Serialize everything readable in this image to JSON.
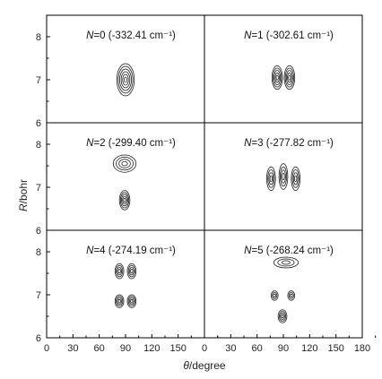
{
  "chart_data": {
    "type": "contour",
    "xlabel_symbol": "θ",
    "xlabel_unit": "/degree",
    "ylabel_symbol": "R",
    "ylabel_unit": "/bohr",
    "xlim": [
      0,
      180
    ],
    "ylim": [
      6,
      8.5
    ],
    "x_ticks": [
      "0",
      "30",
      "60",
      "90",
      "120",
      "150",
      "0",
      "30",
      "60",
      "90",
      "120",
      "150",
      "180"
    ],
    "y_ticks": [
      "6",
      "7",
      "8"
    ],
    "grid": false,
    "panels": [
      {
        "state": "N=0",
        "energy": "(-332.41 cm⁻¹)",
        "blobs": [
          {
            "x": 90,
            "y": 7.0,
            "wx": 10,
            "wy": 0.75,
            "rings": 6
          }
        ]
      },
      {
        "state": "N=1",
        "energy": "(-302.61 cm⁻¹)",
        "blobs": [
          {
            "x": 83,
            "y": 7.05,
            "wx": 6,
            "wy": 0.55,
            "rings": 5
          },
          {
            "x": 97,
            "y": 7.05,
            "wx": 6,
            "wy": 0.55,
            "rings": 5
          }
        ]
      },
      {
        "state": "N=2",
        "energy": "(-299.40 cm⁻¹)",
        "blobs": [
          {
            "x": 89,
            "y": 7.55,
            "wx": 13,
            "wy": 0.4,
            "rings": 4
          },
          {
            "x": 89,
            "y": 6.7,
            "wx": 6,
            "wy": 0.45,
            "rings": 5
          }
        ]
      },
      {
        "state": "N=3",
        "energy": "(-277.82 cm⁻¹)",
        "blobs": [
          {
            "x": 76,
            "y": 7.2,
            "wx": 5,
            "wy": 0.55,
            "rings": 4
          },
          {
            "x": 90,
            "y": 7.25,
            "wx": 5,
            "wy": 0.6,
            "rings": 4
          },
          {
            "x": 104,
            "y": 7.2,
            "wx": 5,
            "wy": 0.55,
            "rings": 4
          }
        ]
      },
      {
        "state": "N=4",
        "energy": "(-274.19 cm⁻¹)",
        "blobs": [
          {
            "x": 83,
            "y": 7.55,
            "wx": 5,
            "wy": 0.35,
            "rings": 4
          },
          {
            "x": 97,
            "y": 7.55,
            "wx": 5,
            "wy": 0.35,
            "rings": 4
          },
          {
            "x": 83,
            "y": 6.85,
            "wx": 5,
            "wy": 0.3,
            "rings": 4
          },
          {
            "x": 97,
            "y": 6.85,
            "wx": 5,
            "wy": 0.3,
            "rings": 4
          }
        ]
      },
      {
        "state": "N=5",
        "energy": "(-268.24 cm⁻¹)",
        "blobs": [
          {
            "x": 93,
            "y": 7.75,
            "wx": 14,
            "wy": 0.25,
            "rings": 3
          },
          {
            "x": 80,
            "y": 6.98,
            "wx": 4,
            "wy": 0.22,
            "rings": 3
          },
          {
            "x": 99,
            "y": 6.98,
            "wx": 4,
            "wy": 0.22,
            "rings": 3
          },
          {
            "x": 89,
            "y": 6.5,
            "wx": 5,
            "wy": 0.3,
            "rings": 4
          }
        ]
      }
    ]
  }
}
